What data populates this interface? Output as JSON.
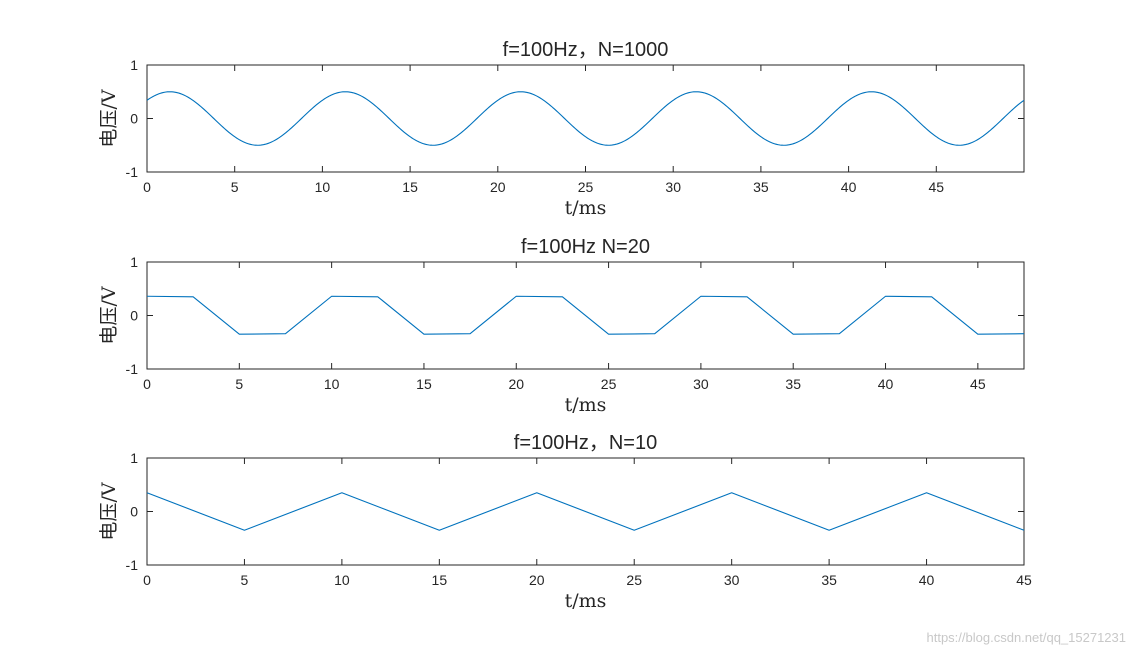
{
  "figure": {
    "watermark": "https://blog.csdn.net/qq_15271231"
  },
  "chart_data": [
    {
      "type": "line",
      "title": "f=100Hz，N=1000",
      "xlabel": "t/ms",
      "ylabel": "电压/V",
      "xlim": [
        0,
        50
      ],
      "ylim": [
        -1,
        1
      ],
      "xticks": [
        0,
        5,
        10,
        15,
        20,
        25,
        30,
        35,
        40,
        45
      ],
      "yticks": [
        -1,
        0,
        1
      ],
      "grid": false,
      "color": "#0072BD",
      "function": "0.5*sin(2*pi*0.1*t + 0.75)",
      "x": [
        0,
        1.25,
        3.75,
        6.25,
        8.75,
        11.25,
        13.75,
        16.25,
        18.75,
        21.25,
        23.75,
        26.25,
        28.75,
        31.25,
        33.75,
        36.25,
        38.75,
        41.25,
        43.75,
        46.25,
        48.75,
        50
      ],
      "y": [
        0.34,
        0.5,
        0,
        -0.5,
        0,
        0.5,
        0,
        -0.5,
        0,
        0.5,
        0,
        -0.5,
        0,
        0.5,
        0,
        -0.5,
        0,
        0.5,
        0,
        -0.5,
        0,
        0.34
      ]
    },
    {
      "type": "line",
      "title": "f=100Hz N=20",
      "xlabel": "t/ms",
      "ylabel": "电压/V",
      "xlim": [
        0,
        47.5
      ],
      "ylim": [
        -1,
        1
      ],
      "xticks": [
        0,
        5,
        10,
        15,
        20,
        25,
        30,
        35,
        40,
        45
      ],
      "yticks": [
        -1,
        0,
        1
      ],
      "grid": false,
      "color": "#0072BD",
      "x": [
        0,
        2.5,
        5,
        7.5,
        10,
        12.5,
        15,
        17.5,
        20,
        22.5,
        25,
        27.5,
        30,
        32.5,
        35,
        37.5,
        40,
        42.5,
        45,
        47.5
      ],
      "y": [
        0.36,
        0.35,
        -0.35,
        -0.34,
        0.36,
        0.35,
        -0.35,
        -0.34,
        0.36,
        0.35,
        -0.35,
        -0.34,
        0.36,
        0.35,
        -0.35,
        -0.34,
        0.36,
        0.35,
        -0.35,
        -0.34
      ]
    },
    {
      "type": "line",
      "title": "f=100Hz，N=10",
      "xlabel": "t/ms",
      "ylabel": "电压/V",
      "xlim": [
        0,
        45
      ],
      "ylim": [
        -1,
        1
      ],
      "xticks": [
        0,
        5,
        10,
        15,
        20,
        25,
        30,
        35,
        40,
        45
      ],
      "yticks": [
        -1,
        0,
        1
      ],
      "grid": false,
      "color": "#0072BD",
      "x": [
        0,
        5,
        10,
        15,
        20,
        25,
        30,
        35,
        40,
        45
      ],
      "y": [
        0.35,
        -0.35,
        0.35,
        -0.35,
        0.35,
        -0.35,
        0.35,
        -0.35,
        0.35,
        -0.35
      ]
    }
  ]
}
